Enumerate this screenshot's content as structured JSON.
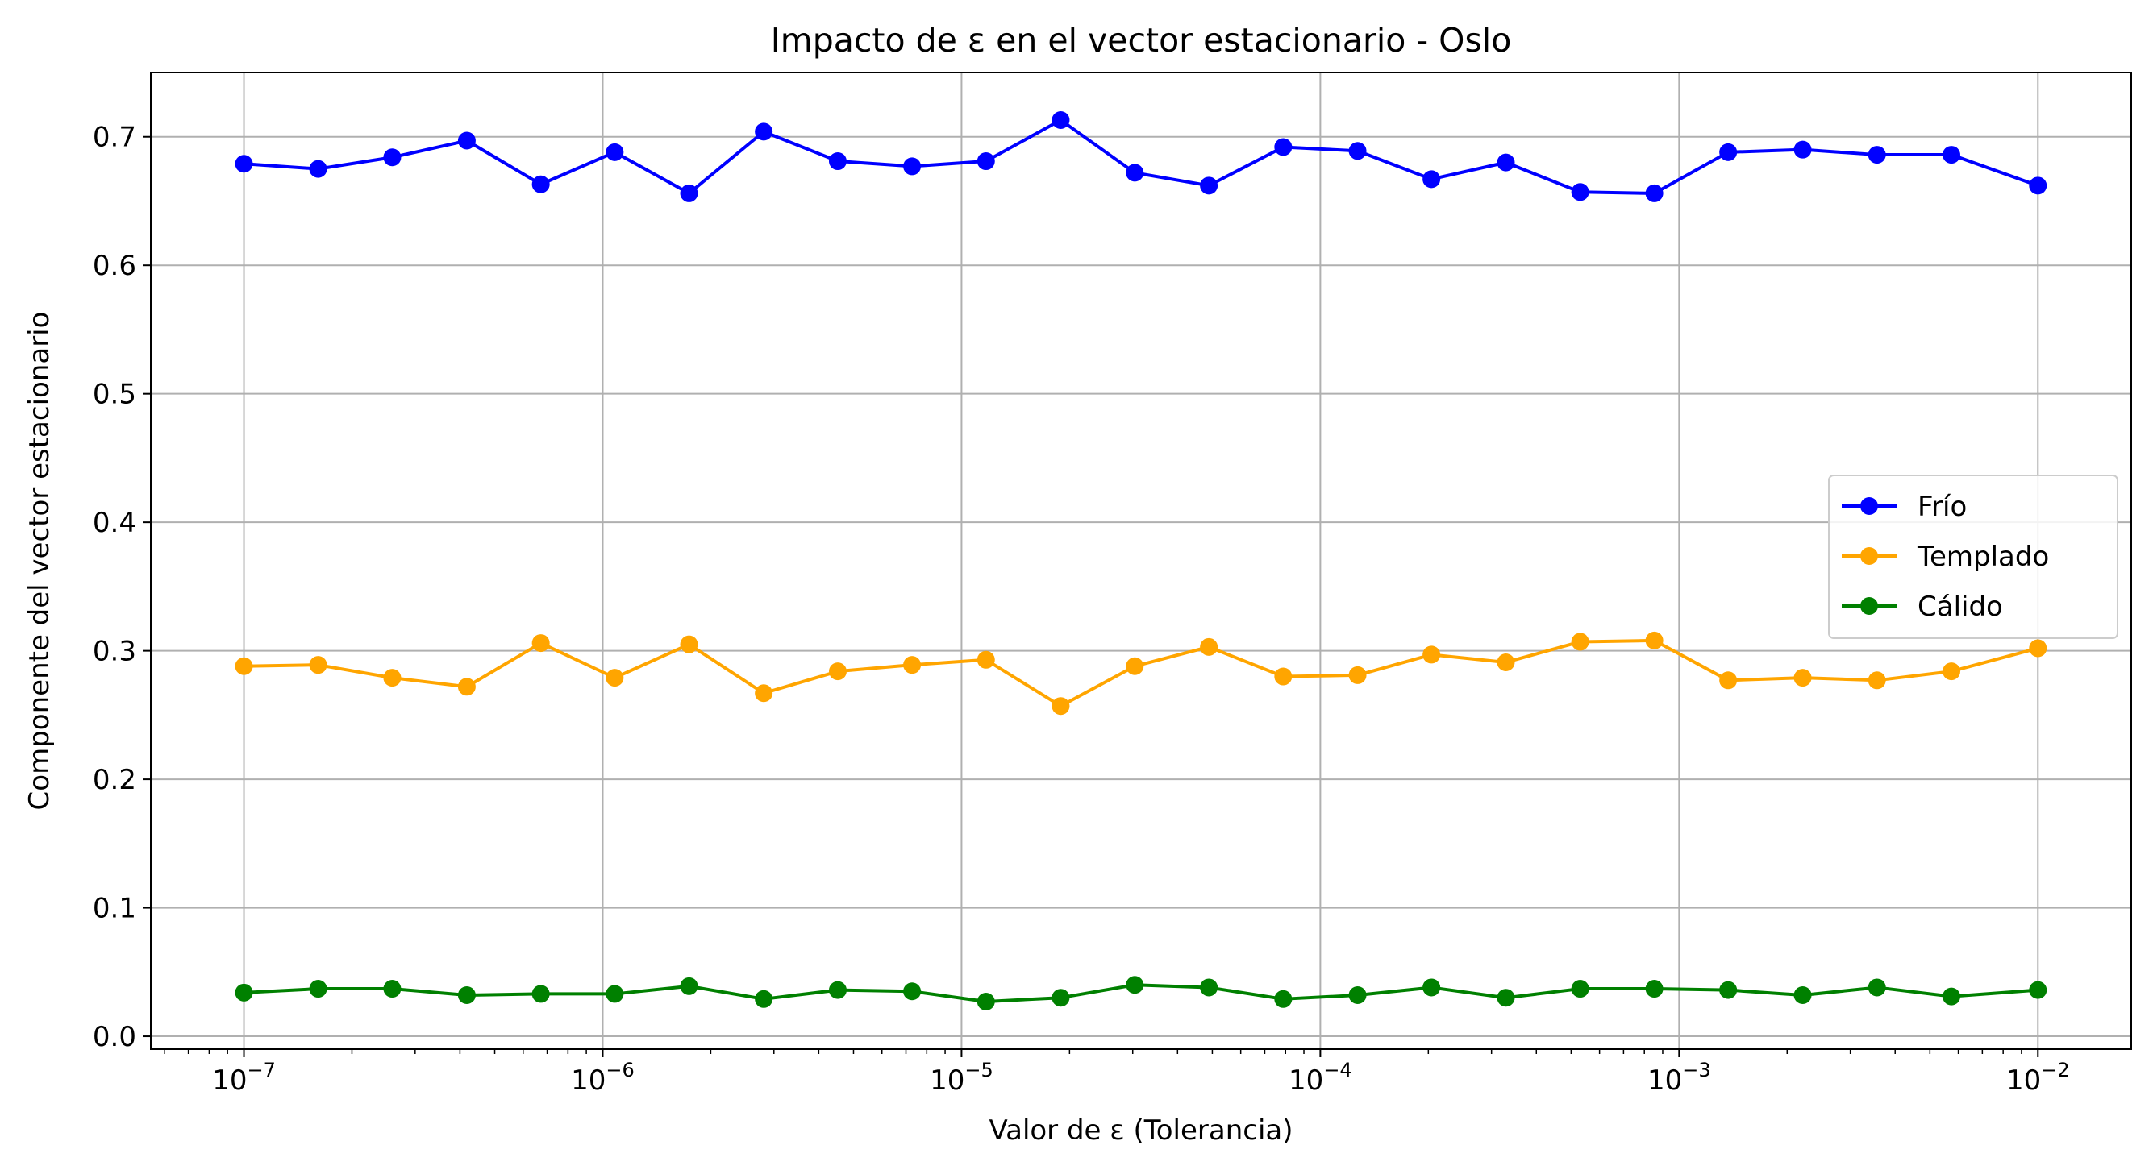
{
  "chart_data": {
    "type": "line",
    "title": "Impacto de ε en el vector estacionario - Oslo",
    "xlabel": "Valor de ε (Tolerancia)",
    "ylabel": "Componente del vector estacionario",
    "xscale": "log",
    "xlim": [
      5.5e-08,
      0.0182
    ],
    "ylim": [
      -0.01,
      0.75
    ],
    "xticks": [
      1e-07,
      1e-06,
      1e-05,
      0.0001,
      0.001,
      0.01
    ],
    "xtick_labels": [
      {
        "base": "10",
        "exp": "−7"
      },
      {
        "base": "10",
        "exp": "−6"
      },
      {
        "base": "10",
        "exp": "−5"
      },
      {
        "base": "10",
        "exp": "−4"
      },
      {
        "base": "10",
        "exp": "−3"
      },
      {
        "base": "10",
        "exp": "−2"
      }
    ],
    "yticks": [
      0.0,
      0.1,
      0.2,
      0.3,
      0.4,
      0.5,
      0.6,
      0.7
    ],
    "ytick_labels": [
      "0.0",
      "0.1",
      "0.2",
      "0.3",
      "0.4",
      "0.5",
      "0.6",
      "0.7"
    ],
    "grid": true,
    "legend_position": "center-right",
    "x": [
      1e-07,
      1.61e-07,
      2.59e-07,
      4.18e-07,
      6.72e-07,
      1.08e-06,
      1.74e-06,
      2.81e-06,
      4.52e-06,
      7.28e-06,
      1.17e-05,
      1.89e-05,
      3.04e-05,
      4.89e-05,
      7.88e-05,
      0.000127,
      0.000204,
      0.000329,
      0.00053,
      0.000853,
      0.00137,
      0.00221,
      0.00356,
      0.00574,
      0.01
    ],
    "series": [
      {
        "name": "Frío",
        "color": "#0000ff",
        "values": [
          0.679,
          0.675,
          0.684,
          0.697,
          0.663,
          0.688,
          0.656,
          0.704,
          0.681,
          0.677,
          0.681,
          0.713,
          0.672,
          0.662,
          0.692,
          0.689,
          0.667,
          0.68,
          0.657,
          0.656,
          0.688,
          0.69,
          0.686,
          0.686,
          0.662
        ]
      },
      {
        "name": "Templado",
        "color": "#ffa500",
        "values": [
          0.288,
          0.289,
          0.279,
          0.272,
          0.306,
          0.279,
          0.305,
          0.267,
          0.284,
          0.289,
          0.293,
          0.257,
          0.288,
          0.303,
          0.28,
          0.281,
          0.297,
          0.291,
          0.307,
          0.308,
          0.277,
          0.279,
          0.277,
          0.284,
          0.302
        ]
      },
      {
        "name": "Cálido",
        "color": "#008000",
        "values": [
          0.034,
          0.037,
          0.037,
          0.032,
          0.033,
          0.033,
          0.039,
          0.029,
          0.036,
          0.035,
          0.027,
          0.03,
          0.04,
          0.038,
          0.029,
          0.032,
          0.038,
          0.03,
          0.037,
          0.037,
          0.036,
          0.032,
          0.038,
          0.031,
          0.036
        ]
      }
    ]
  }
}
